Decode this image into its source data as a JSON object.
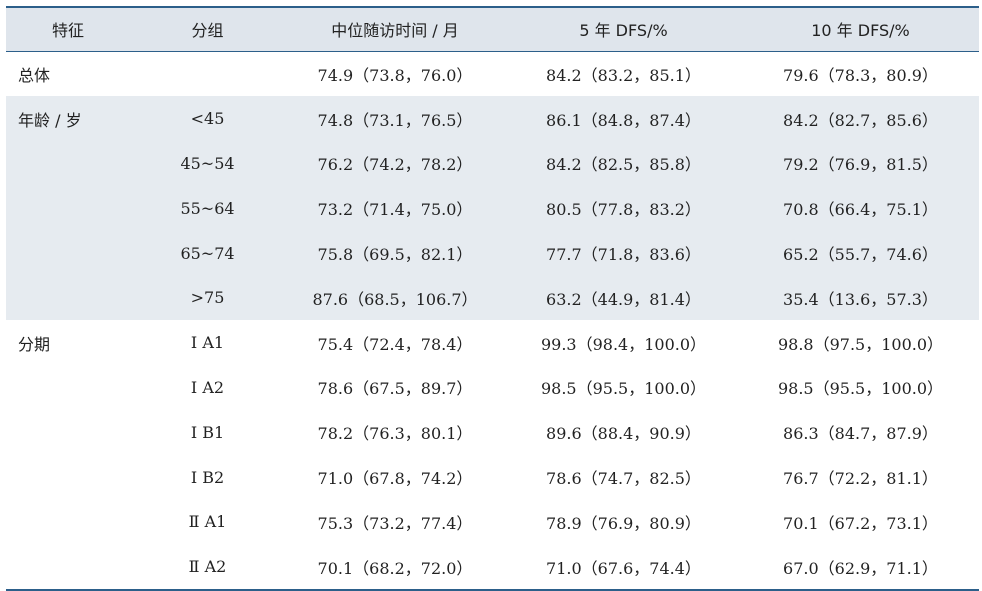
{
  "header": [
    "特征",
    "分组",
    "中位随访时间 / 月",
    "5 年 DFS/%",
    "10 年 DFS/%"
  ],
  "rows": [
    {
      "feature": "总体",
      "group": "",
      "median": "74.9（73.8，76.0）",
      "dfs5": "84.2（83.2，85.1）",
      "dfs10": "79.6（78.3，80.9）",
      "shaded": false
    },
    {
      "feature": "年龄 / 岁",
      "group": "<45",
      "median": "74.8（73.1，76.5）",
      "dfs5": "86.1（84.8，87.4）",
      "dfs10": "84.2（82.7，85.6）",
      "shaded": true
    },
    {
      "feature": "",
      "group": "45~54",
      "median": "76.2（74.2，78.2）",
      "dfs5": "84.2（82.5，85.8）",
      "dfs10": "79.2（76.9，81.5）",
      "shaded": true
    },
    {
      "feature": "",
      "group": "55~64",
      "median": "73.2（71.4，75.0）",
      "dfs5": "80.5（77.8，83.2）",
      "dfs10": "70.8（66.4，75.1）",
      "shaded": true
    },
    {
      "feature": "",
      "group": "65~74",
      "median": "75.8（69.5，82.1）",
      "dfs5": "77.7（71.8，83.6）",
      "dfs10": "65.2（55.7，74.6）",
      "shaded": true
    },
    {
      "feature": "",
      "group": ">75",
      "median": "87.6（68.5，106.7）",
      "dfs5": "63.2（44.9，81.4）",
      "dfs10": "35.4（13.6，57.3）",
      "shaded": true
    },
    {
      "feature": "分期",
      "group": "Ⅰ A1",
      "median": "75.4（72.4，78.4）",
      "dfs5": "99.3（98.4，100.0）",
      "dfs10": "98.8（97.5，100.0）",
      "shaded": false
    },
    {
      "feature": "",
      "group": "Ⅰ A2",
      "median": "78.6（67.5，89.7）",
      "dfs5": "98.5（95.5，100.0）",
      "dfs10": "98.5（95.5，100.0）",
      "shaded": false
    },
    {
      "feature": "",
      "group": "Ⅰ B1",
      "median": "78.2（76.3，80.1）",
      "dfs5": "89.6（88.4，90.9）",
      "dfs10": "86.3（84.7，87.9）",
      "shaded": false
    },
    {
      "feature": "",
      "group": "Ⅰ B2",
      "median": "71.0（67.8，74.2）",
      "dfs5": "78.6（74.7，82.5）",
      "dfs10": "76.7（72.2，81.1）",
      "shaded": false
    },
    {
      "feature": "",
      "group": "Ⅱ A1",
      "median": "75.3（73.2，77.4）",
      "dfs5": "78.9（76.9，80.9）",
      "dfs10": "70.1（67.2，73.1）",
      "shaded": false
    },
    {
      "feature": "",
      "group": "Ⅱ A2",
      "median": "70.1（68.2，72.0）",
      "dfs5": "71.0（67.6，74.4）",
      "dfs10": "67.0（62.9，71.1）",
      "shaded": false
    }
  ]
}
